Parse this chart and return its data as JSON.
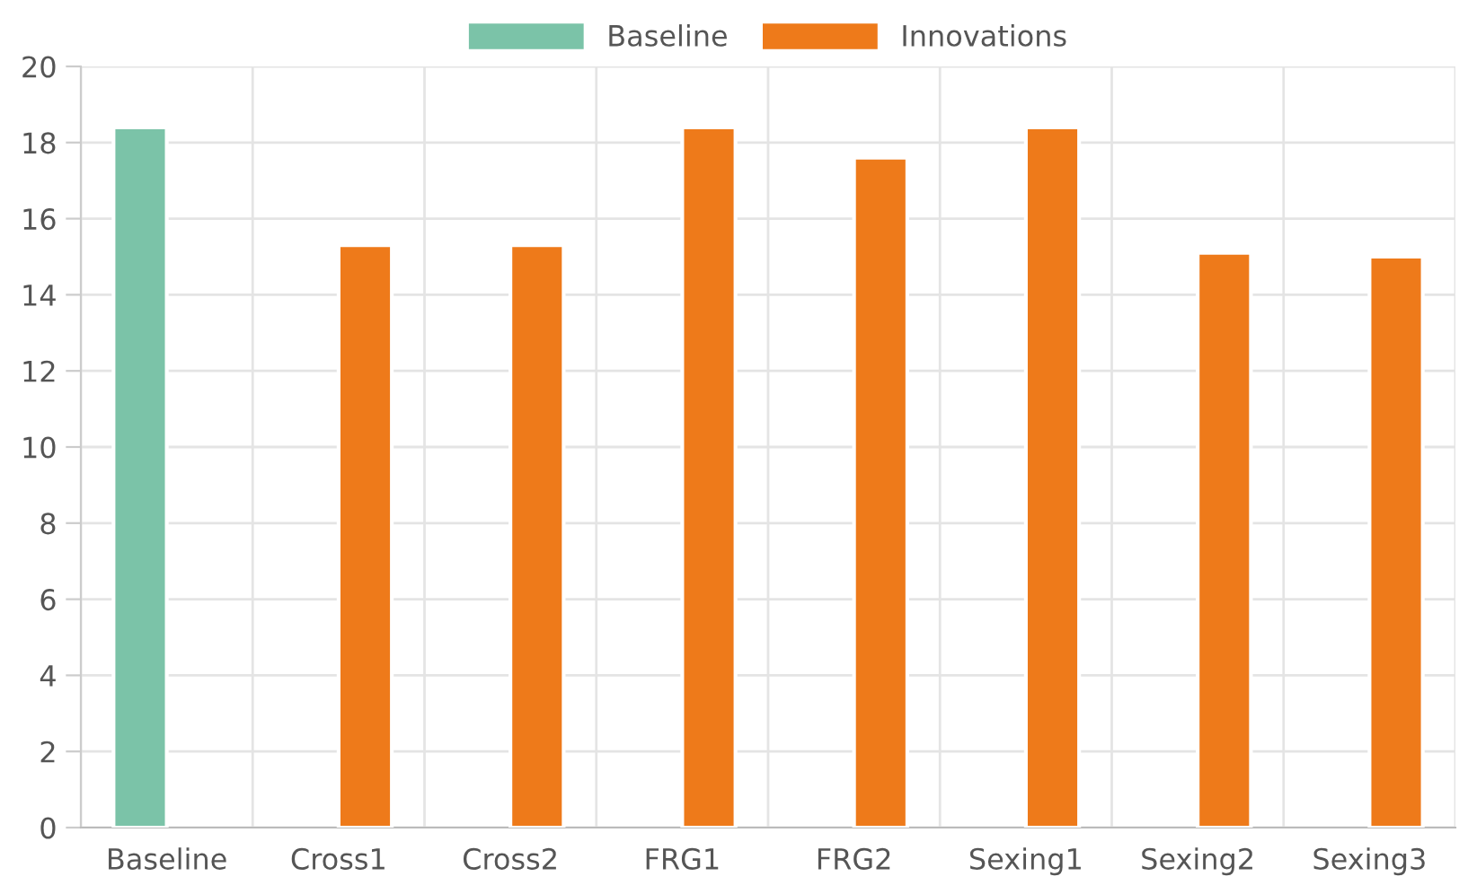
{
  "chart_data": {
    "type": "bar",
    "categories": [
      "Baseline",
      "Cross1",
      "Cross2",
      "FRG1",
      "FRG2",
      "Sexing1",
      "Sexing2",
      "Sexing3"
    ],
    "series": [
      {
        "name": "Baseline",
        "color": "#7bc3a8",
        "values": [
          18.4,
          null,
          null,
          null,
          null,
          null,
          null,
          null
        ]
      },
      {
        "name": "Innovations",
        "color": "#ee7a1a",
        "values": [
          null,
          15.3,
          15.3,
          18.4,
          17.6,
          18.4,
          15.1,
          15.0
        ]
      }
    ],
    "ylim": [
      0,
      20
    ],
    "yticks": [
      0,
      2,
      4,
      6,
      8,
      10,
      12,
      14,
      16,
      18,
      20
    ],
    "grid": true,
    "legend": "top"
  }
}
